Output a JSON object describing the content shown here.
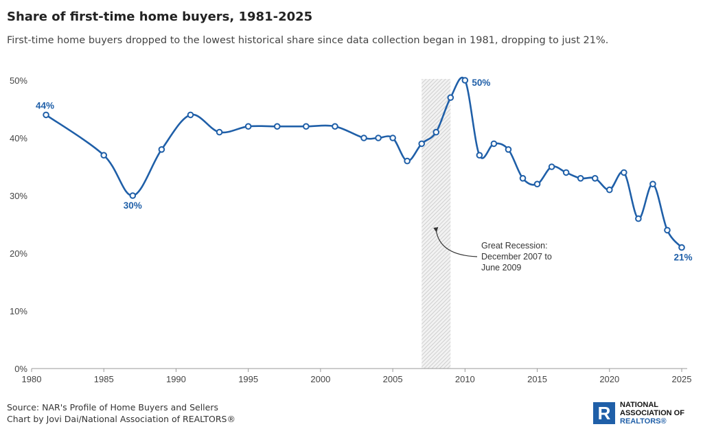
{
  "header": {
    "title": "Share of first-time home buyers, 1981-2025",
    "subtitle": "First-time home buyers dropped to the lowest historical share since data collection began in 1981, dropping to just 21%."
  },
  "chart_data": {
    "type": "line",
    "title": "Share of first-time home buyers, 1981-2025",
    "x": [
      1981,
      1985,
      1987,
      1989,
      1991,
      1993,
      1995,
      1997,
      1999,
      2001,
      2003,
      2004,
      2005,
      2006,
      2007,
      2008,
      2009,
      2010,
      2011,
      2012,
      2013,
      2014,
      2015,
      2016,
      2017,
      2018,
      2019,
      2020,
      2021,
      2022,
      2023,
      2024,
      2025
    ],
    "series": [
      {
        "values": [
          44,
          37,
          30,
          38,
          44,
          41,
          42,
          42,
          42,
          42,
          40,
          40,
          40,
          36,
          39,
          41,
          47,
          50,
          37,
          39,
          38,
          33,
          32,
          35,
          34,
          33,
          33,
          31,
          34,
          26,
          32,
          24,
          21
        ]
      }
    ],
    "xlim": [
      1980,
      2025
    ],
    "ylim": [
      0,
      50
    ],
    "xticks": [
      "1980",
      "1985",
      "1990",
      "1995",
      "2000",
      "2005",
      "2010",
      "2015",
      "2020",
      "2025"
    ],
    "yticks": [
      "0%",
      "10%",
      "20%",
      "30%",
      "40%",
      "50%"
    ],
    "grid": false,
    "color": "#1f5fa8",
    "data_labels": [
      {
        "x": 1981,
        "text": "44%"
      },
      {
        "x": 1987,
        "text": "30%"
      },
      {
        "x": 2010,
        "text": "50%"
      },
      {
        "x": 2025,
        "text": "21%"
      }
    ],
    "shaded_region": {
      "from": 2007,
      "to": 2009,
      "annotation": [
        "Great Recession:",
        "December 2007 to",
        "June 2009"
      ]
    }
  },
  "footer": {
    "source": "Source: NAR's Profile of Home Buyers and Sellers",
    "credit": "Chart by Jovi Dai/National Association of REALTORS®"
  },
  "logo": {
    "letter": "R",
    "line1": "NATIONAL",
    "line2": "ASSOCIATION OF",
    "line3": "REALTORS®"
  }
}
